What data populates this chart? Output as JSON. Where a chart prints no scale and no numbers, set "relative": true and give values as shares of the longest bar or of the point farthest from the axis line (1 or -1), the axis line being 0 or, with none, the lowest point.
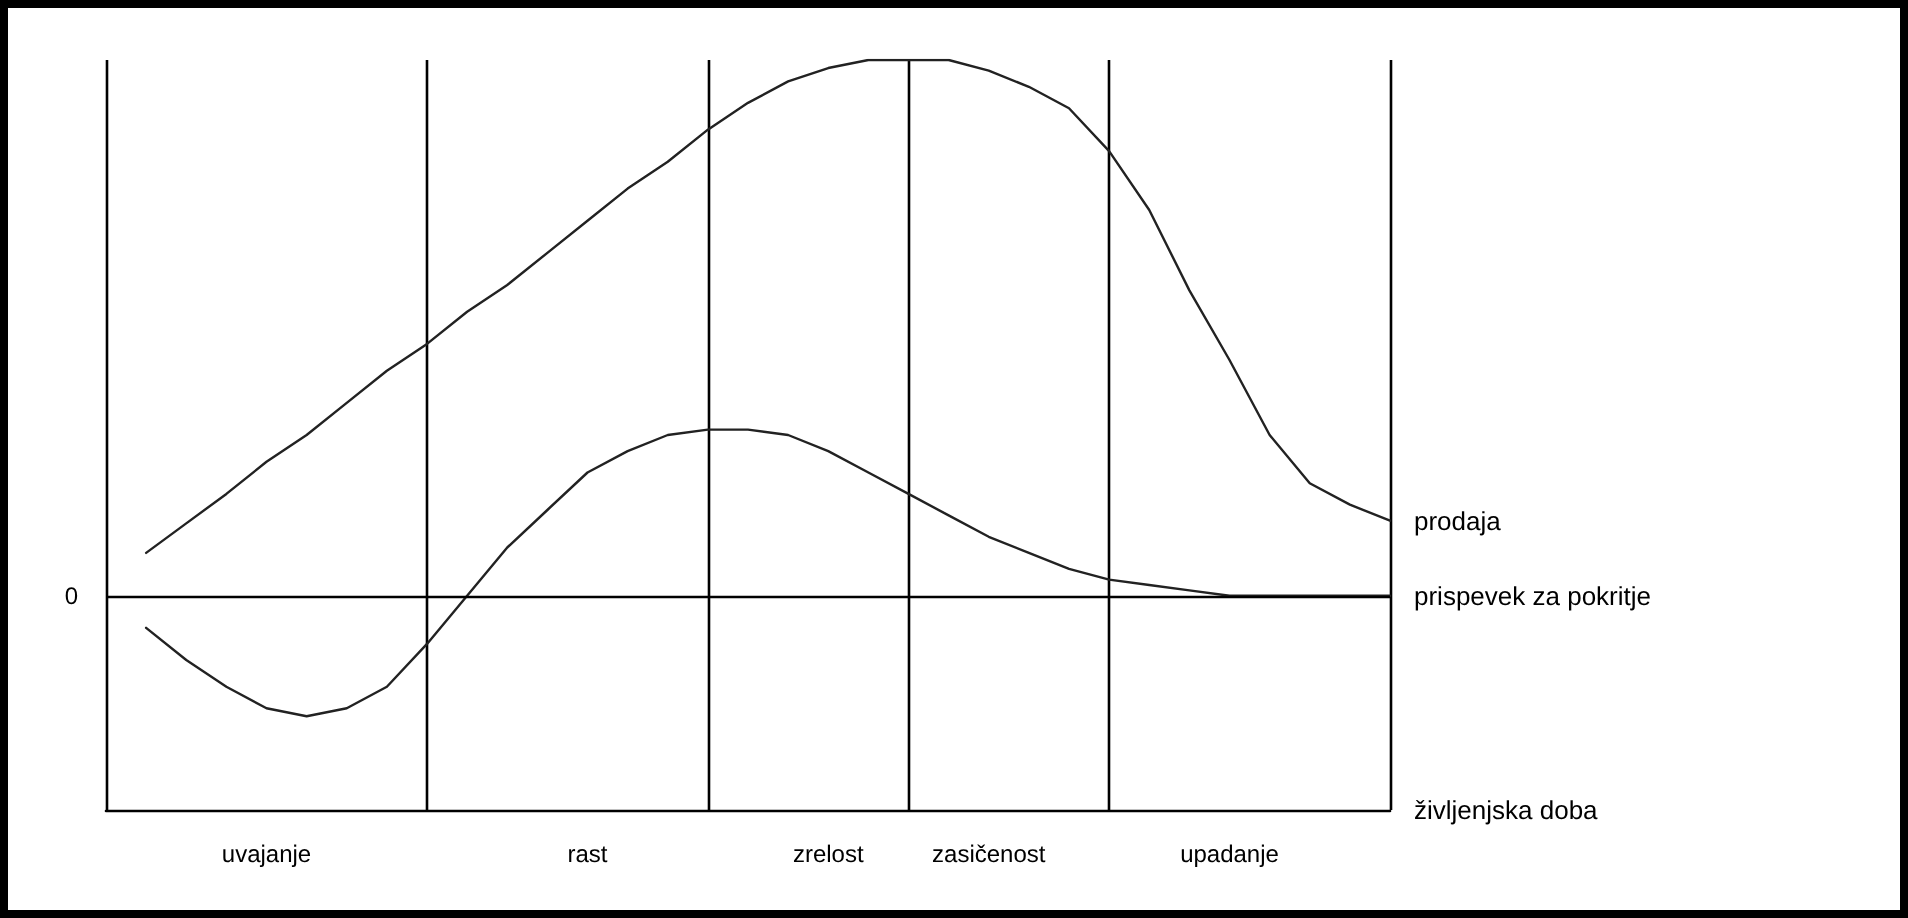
{
  "chart_data": {
    "type": "line",
    "relative": true,
    "xlabel": "življenjska doba",
    "legend": false,
    "grid": "x",
    "marker": "none",
    "line_style": "solid",
    "categories": [
      null,
      null,
      null,
      null,
      "uvajanje",
      null,
      null,
      null,
      null,
      null,
      null,
      null,
      "rast",
      null,
      null,
      null,
      null,
      null,
      "zrelost",
      null,
      null,
      null,
      "zasičenost",
      null,
      null,
      null,
      null,
      null,
      "upadanje",
      null,
      null,
      null,
      null
    ],
    "series": [
      {
        "name": "prodaja",
        "color": "#222222",
        "values": [
          null,
          0.08,
          0.135,
          0.19,
          0.25,
          0.3,
          0.36,
          0.42,
          0.47,
          0.53,
          0.58,
          0.64,
          0.7,
          0.76,
          0.81,
          0.87,
          0.92,
          0.96,
          0.985,
          1,
          1,
          1,
          0.98,
          0.95,
          0.91,
          0.83,
          0.72,
          0.57,
          0.44,
          0.3,
          0.21,
          0.17,
          0.14
        ]
      },
      {
        "name": "prispevek za pokritje",
        "color": "#222222",
        "values": [
          null,
          -0.06,
          -0.12,
          -0.17,
          -0.21,
          -0.225,
          -0.21,
          -0.17,
          -0.09,
          0,
          0.09,
          0.16,
          0.23,
          0.27,
          0.3,
          0.31,
          0.31,
          0.3,
          0.27,
          0.23,
          0.19,
          0.15,
          0.11,
          0.08,
          0.05,
          0.03,
          0.02,
          0.01,
          0,
          0,
          0,
          0,
          0
        ]
      }
    ],
    "ref_lines": [
      {
        "axis": "y",
        "value": 0,
        "label": "0"
      }
    ]
  }
}
